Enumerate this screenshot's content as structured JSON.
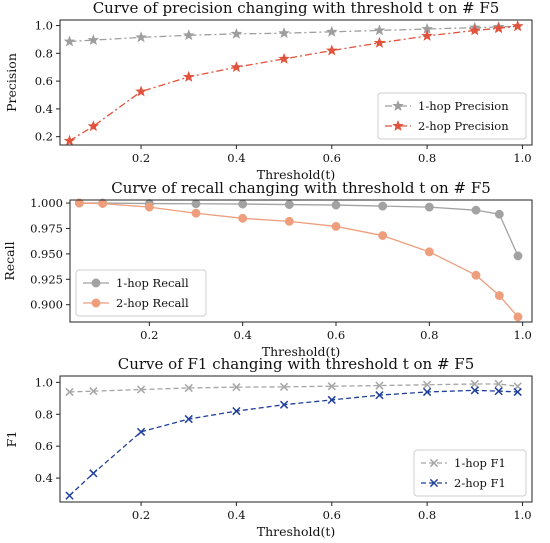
{
  "chart_data": [
    {
      "type": "line",
      "title": "Curve of precision changing with threshold t on # F5",
      "xlabel": "Threshold(t)",
      "ylabel": "Precision",
      "xlim": [
        0.03,
        1.02
      ],
      "ylim": [
        0.14,
        1.04
      ],
      "xticks": [
        "0.2",
        "0.4",
        "0.6",
        "0.8",
        "1.0"
      ],
      "yticks": [
        "0.2",
        "0.4",
        "0.6",
        "0.8",
        "1.0"
      ],
      "legend_position": "lower right",
      "x": [
        0.05,
        0.1,
        0.2,
        0.3,
        0.4,
        0.5,
        0.6,
        0.7,
        0.8,
        0.9,
        0.95,
        0.99
      ],
      "series": [
        {
          "name": "1-hop Precision",
          "color": "#9e9e9e",
          "linestyle": "dashdot",
          "marker": "star",
          "values": [
            0.885,
            0.895,
            0.915,
            0.93,
            0.94,
            0.945,
            0.955,
            0.965,
            0.975,
            0.985,
            0.99,
            0.995
          ]
        },
        {
          "name": "2-hop Precision",
          "color": "#e0533c",
          "linestyle": "dashdot",
          "marker": "star",
          "values": [
            0.17,
            0.275,
            0.525,
            0.63,
            0.7,
            0.76,
            0.82,
            0.875,
            0.925,
            0.965,
            0.98,
            0.995
          ]
        }
      ]
    },
    {
      "type": "line",
      "title": "Curve of recall changing with threshold t on # F5",
      "xlabel": "Threshold(t)",
      "ylabel": "Recall",
      "xlim": [
        0.03,
        1.02
      ],
      "ylim": [
        0.883,
        1.003
      ],
      "xticks": [
        "0.2",
        "0.4",
        "0.6",
        "0.8",
        "1.0"
      ],
      "yticks": [
        "0.900",
        "0.925",
        "0.950",
        "0.975",
        "1.000"
      ],
      "legend_position": "lower left",
      "x": [
        0.05,
        0.1,
        0.2,
        0.3,
        0.4,
        0.5,
        0.6,
        0.7,
        0.8,
        0.9,
        0.95,
        0.99
      ],
      "series": [
        {
          "name": "1-hop Recall",
          "color": "#a2a2a2",
          "linestyle": "solid",
          "marker": "circle",
          "values": [
            1.0,
            1.0,
            0.9995,
            0.9993,
            0.999,
            0.9985,
            0.998,
            0.997,
            0.996,
            0.993,
            0.989,
            0.948
          ]
        },
        {
          "name": "2-hop Recall",
          "color": "#ee9e7c",
          "linestyle": "solid",
          "marker": "circle",
          "values": [
            1.0,
            0.9995,
            0.996,
            0.99,
            0.985,
            0.982,
            0.977,
            0.968,
            0.952,
            0.929,
            0.909,
            0.888
          ]
        }
      ]
    },
    {
      "type": "line",
      "title": "Curve of F1 changing with threshold t on # F5",
      "xlabel": "Threshold(t)",
      "ylabel": "F1",
      "xlim": [
        0.03,
        1.02
      ],
      "ylim": [
        0.25,
        1.04
      ],
      "xticks": [
        "0.2",
        "0.4",
        "0.6",
        "0.8",
        "1.0"
      ],
      "yticks": [
        "0.4",
        "0.6",
        "0.8",
        "1.0"
      ],
      "legend_position": "lower right",
      "x": [
        0.05,
        0.1,
        0.2,
        0.3,
        0.4,
        0.5,
        0.6,
        0.7,
        0.8,
        0.9,
        0.95,
        0.99
      ],
      "series": [
        {
          "name": "1-hop F1",
          "color": "#a5a5a5",
          "linestyle": "dashed",
          "marker": "x",
          "values": [
            0.94,
            0.945,
            0.955,
            0.965,
            0.97,
            0.972,
            0.976,
            0.98,
            0.985,
            0.99,
            0.99,
            0.975
          ]
        },
        {
          "name": "2-hop F1",
          "color": "#1f3f9a",
          "linestyle": "dashed",
          "marker": "x",
          "values": [
            0.29,
            0.43,
            0.69,
            0.77,
            0.82,
            0.86,
            0.89,
            0.92,
            0.94,
            0.95,
            0.945,
            0.94
          ]
        }
      ]
    }
  ]
}
